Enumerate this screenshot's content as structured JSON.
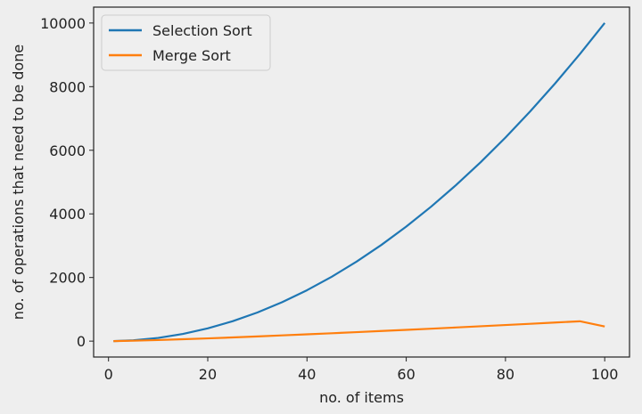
{
  "chart_data": {
    "type": "line",
    "title": "",
    "xlabel": "no. of items",
    "ylabel": "no. of operations that need to be done",
    "xlim": [
      -3,
      105
    ],
    "ylim": [
      -500,
      10500
    ],
    "xticks": [
      0,
      20,
      40,
      60,
      80,
      100
    ],
    "yticks": [
      0,
      2000,
      4000,
      6000,
      8000,
      10000
    ],
    "grid": false,
    "legend": "top-left",
    "series": [
      {
        "name": "Selection Sort",
        "color": "#1f77b4",
        "x": [
          1,
          5,
          10,
          15,
          20,
          25,
          30,
          35,
          40,
          45,
          50,
          55,
          60,
          65,
          70,
          75,
          80,
          85,
          90,
          95,
          100
        ],
        "y": [
          1,
          25,
          100,
          225,
          400,
          625,
          900,
          1225,
          1600,
          2025,
          2500,
          3025,
          3600,
          4225,
          4900,
          5625,
          6400,
          7225,
          8100,
          9025,
          10000
        ]
      },
      {
        "name": "Merge Sort",
        "color": "#ff7f0e",
        "x": [
          1,
          5,
          10,
          15,
          20,
          25,
          30,
          35,
          40,
          45,
          50,
          55,
          60,
          65,
          70,
          75,
          80,
          85,
          90,
          95,
          100
        ],
        "y": [
          0,
          12,
          33,
          59,
          86,
          116,
          147,
          180,
          213,
          247,
          282,
          318,
          354,
          391,
          429,
          467,
          506,
          545,
          584,
          624,
          460
        ]
      }
    ]
  }
}
